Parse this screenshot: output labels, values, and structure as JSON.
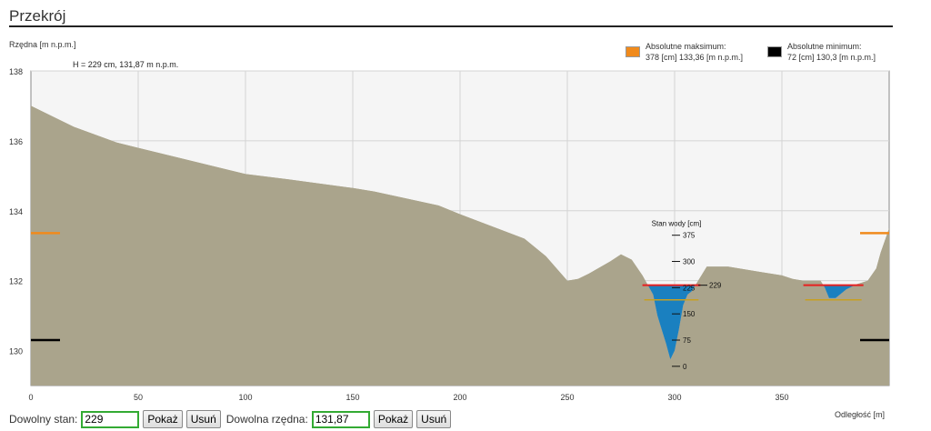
{
  "title": "Przekrój",
  "info_text": "H = 229 cm, 131,87 m n.p.m.",
  "legend": [
    {
      "label": "Absolutne maksimum:",
      "value": "378 [cm] 133,36 [m n.p.m.]",
      "color": "#f08a1c"
    },
    {
      "label": "Absolutne minimum:",
      "value": "72 [cm] 130,3 [m n.p.m.]",
      "color": "#000000"
    }
  ],
  "controls": {
    "state_label": "Dowolny stan:",
    "state_value": "229",
    "show_label": "Pokaż",
    "remove_label": "Usuń",
    "elev_label": "Dowolna rzędna:",
    "elev_value": "131,87"
  },
  "colors": {
    "ground": "#aaa48c",
    "water": "#1a80c0",
    "current_level": "#e82020",
    "max_level": "#f08a1c",
    "min_level": "#000000",
    "gauge_level": "#c8a020",
    "plot_bg": "#f5f5f5"
  },
  "chart_data": {
    "type": "area",
    "xlabel": "Odległość [m]",
    "ylabel": "Rzędna [m n.p.m.]",
    "xlim": [
      0,
      400
    ],
    "ylim": [
      129,
      138
    ],
    "x_ticks": [
      "0",
      "50",
      "100",
      "150",
      "200",
      "250",
      "300",
      "350"
    ],
    "y_ticks": [
      "130",
      "132",
      "134",
      "136",
      "138"
    ],
    "grid": true,
    "legend_position": "top-right",
    "series": [
      {
        "name": "",
        "x": [
          0,
          20,
          40,
          50,
          70,
          100,
          120,
          150,
          160,
          190,
          200,
          230,
          240,
          250,
          255,
          260,
          270,
          275,
          280,
          285,
          290,
          292,
          294,
          296,
          298,
          300,
          302,
          304,
          306,
          308,
          310,
          315,
          325,
          340,
          350,
          355,
          360,
          365,
          368,
          370,
          372,
          375,
          380,
          385,
          390,
          394,
          396,
          400
        ],
        "y": [
          137.0,
          136.4,
          135.95,
          135.8,
          135.5,
          135.05,
          134.9,
          134.65,
          134.55,
          134.15,
          133.9,
          133.2,
          132.7,
          132.0,
          132.05,
          132.2,
          132.55,
          132.75,
          132.6,
          132.15,
          131.6,
          131.0,
          130.6,
          130.2,
          129.75,
          130.0,
          130.6,
          131.3,
          131.6,
          131.7,
          131.9,
          132.4,
          132.4,
          132.25,
          132.15,
          132.05,
          132.0,
          132.0,
          132.0,
          131.8,
          131.5,
          131.5,
          131.75,
          131.9,
          132.0,
          132.35,
          132.8,
          133.5
        ]
      }
    ],
    "water": [
      {
        "x": [
          285,
          312
        ],
        "level": 131.87
      },
      {
        "x": [
          360,
          388
        ],
        "level": 131.87
      }
    ],
    "reference_levels": [
      {
        "name": "Absolutne maksimum",
        "value": 133.36
      },
      {
        "name": "Absolutne minimum",
        "value": 130.3
      }
    ],
    "gauge_reading": {
      "value": 131.87,
      "label": "229"
    },
    "gauge_level_value": 131.45,
    "gauge": {
      "label": "Stan wody [cm]",
      "ticks": [
        {
          "label": "375",
          "value": 133.3
        },
        {
          "label": "300",
          "value": 132.55
        },
        {
          "label": "225",
          "value": 131.8
        },
        {
          "label": "150",
          "value": 131.05
        },
        {
          "label": "75",
          "value": 130.3
        },
        {
          "label": "0",
          "value": 129.55
        }
      ]
    }
  }
}
